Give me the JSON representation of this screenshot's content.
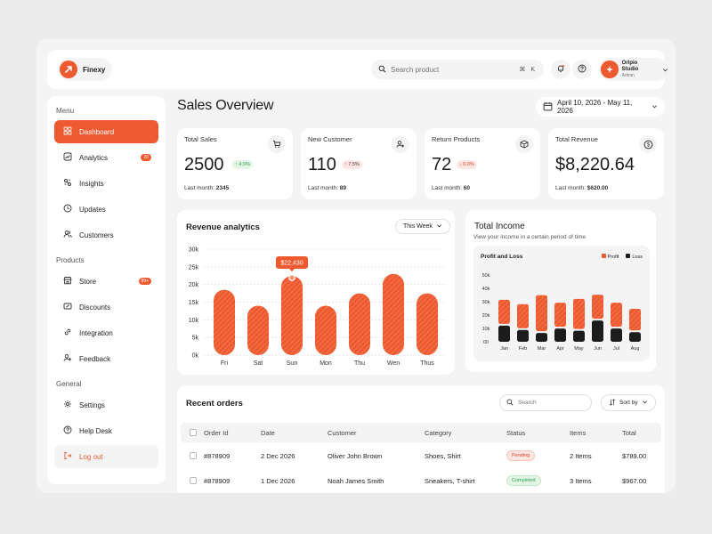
{
  "app": {
    "name": "Finexy"
  },
  "search": {
    "placeholder": "Search product",
    "shortcut": "⌘ K"
  },
  "user": {
    "name": "Orlpio Studio",
    "role": "Admin"
  },
  "sidebar": {
    "menu_title": "Menu",
    "menu": [
      {
        "label": "Dashboard",
        "icon": "dashboard-icon",
        "active": true
      },
      {
        "label": "Analytics",
        "icon": "analytics-icon",
        "badge": "20"
      },
      {
        "label": "Insights",
        "icon": "insights-icon"
      },
      {
        "label": "Updates",
        "icon": "updates-icon"
      },
      {
        "label": "Customers",
        "icon": "customers-icon"
      }
    ],
    "products_title": "Products",
    "products": [
      {
        "label": "Store",
        "icon": "store-icon",
        "badge": "99+"
      },
      {
        "label": "Discounts",
        "icon": "discounts-icon"
      },
      {
        "label": "Integration",
        "icon": "integration-icon"
      },
      {
        "label": "Feedback",
        "icon": "feedback-icon"
      }
    ],
    "general_title": "General",
    "general": [
      {
        "label": "Settings",
        "icon": "settings-icon"
      },
      {
        "label": "Help Desk",
        "icon": "help-icon"
      },
      {
        "label": "Log out",
        "icon": "logout-icon"
      }
    ]
  },
  "header": {
    "title": "Sales Overview",
    "date_range": "April 10, 2026 - May 11, 2026"
  },
  "stats": [
    {
      "label": "Total Sales",
      "value": "2500",
      "change": "4.9%",
      "direction": "up",
      "last_label": "Last month:",
      "last_value": "2345",
      "icon": "cart-icon"
    },
    {
      "label": "New Customer",
      "value": "110",
      "change": "7.5%",
      "direction": "up",
      "last_label": "Last month:",
      "last_value": "89",
      "icon": "user-plus-icon"
    },
    {
      "label": "Return Products",
      "value": "72",
      "change": "6.0%",
      "direction": "down",
      "last_label": "Last month:",
      "last_value": "60",
      "icon": "box-icon"
    },
    {
      "label": "Total Revenue",
      "value": "$8,220.64",
      "change": "",
      "direction": "",
      "last_label": "Last month:",
      "last_value": "$620.00",
      "icon": "dollar-icon"
    }
  ],
  "revenue": {
    "title": "Revenue analytics",
    "period": "This Week",
    "tooltip": "$22,430"
  },
  "income": {
    "title": "Total Income",
    "subtitle": "View your income in a certain period of time",
    "inner_title": "Profit and Loss",
    "legend_profit": "Profit",
    "legend_loss": "Loss"
  },
  "orders": {
    "title": "Recent orders",
    "search_placeholder": "Search",
    "sort_label": "Sort by",
    "columns": [
      "Order Id",
      "Date",
      "Customer",
      "Category",
      "Status",
      "Items",
      "Total"
    ],
    "rows": [
      {
        "id": "#878909",
        "date": "2 Dec 2026",
        "customer": "Oliver John Brown",
        "category": "Shoes, Shirt",
        "status": "Pending",
        "items": "2 Items",
        "total": "$789.00"
      },
      {
        "id": "#878909",
        "date": "1 Dec 2026",
        "customer": "Noah James Smith",
        "category": "Sneakers, T-shirt",
        "status": "Completed",
        "items": "3 Items",
        "total": "$967.00"
      }
    ]
  },
  "colors": {
    "accent": "#ee5a30",
    "loss": "#1c1c1c"
  },
  "chart_data": [
    {
      "type": "bar",
      "title": "Revenue analytics",
      "categories": [
        "Fri",
        "Sat",
        "Sun",
        "Mon",
        "Thu",
        "Wen",
        "Thus"
      ],
      "values": [
        18500,
        14000,
        22430,
        14000,
        17500,
        23000,
        17500
      ],
      "ylim": [
        0,
        30000
      ],
      "yticks": [
        "0k",
        "5k",
        "10k",
        "15k",
        "20k",
        "25k",
        "30k"
      ],
      "highlight": "Sun"
    },
    {
      "type": "bar",
      "title": "Profit and Loss",
      "categories": [
        "Jan",
        "Feb",
        "Mar",
        "Apr",
        "May",
        "Jun",
        "Jul",
        "Aug"
      ],
      "series": [
        {
          "name": "Profit",
          "values": [
            20000,
            20000,
            30000,
            20000,
            25000,
            20000,
            20000,
            18000
          ]
        },
        {
          "name": "Loss",
          "values": [
            22000,
            16000,
            12000,
            18000,
            15000,
            29000,
            18000,
            13000
          ]
        }
      ],
      "ylim": [
        0,
        50000
      ],
      "yticks": [
        "00",
        "10k",
        "20k",
        "30k",
        "40k",
        "50k"
      ],
      "legend": "top-right"
    }
  ]
}
